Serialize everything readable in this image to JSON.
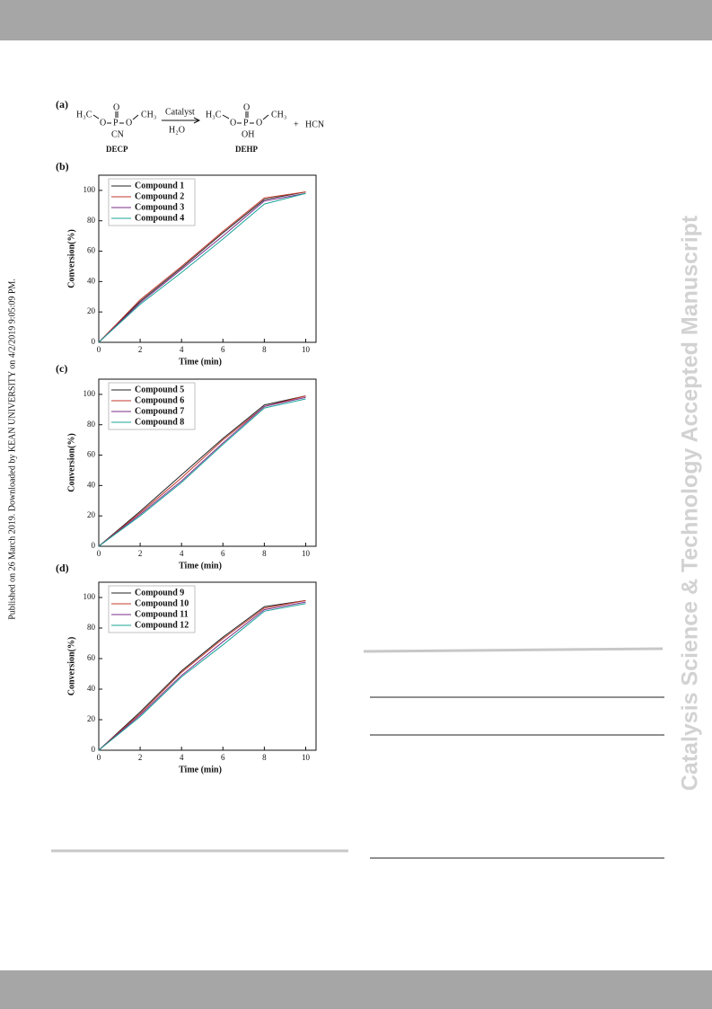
{
  "side_note": "Published on 26 March 2019. Downloaded by KEAN UNIVERSITY on 4/2/2019 9:05:09 PM.",
  "watermark": "Catalysis Science & Technology Accepted Manuscript",
  "scheme": {
    "label": "(a)",
    "reactant": {
      "left": "H₃C",
      "o1": "O",
      "p": "P",
      "o2": "O",
      "right": "CH₃",
      "top": "O",
      "sub": "CN",
      "name": "DECP"
    },
    "catalyst": "Catalyst",
    "solvent": "H₂O",
    "product": {
      "left": "H₃C",
      "o1": "O",
      "p": "P",
      "o2": "O",
      "right": "CH₃",
      "top": "O",
      "sub": "OH",
      "name": "DEHP"
    },
    "plus": "+",
    "byproduct": "HCN"
  },
  "chart_data": [
    {
      "type": "line",
      "label": "(b)",
      "xlabel": "Time (min)",
      "ylabel": "Conversion(%)",
      "x": [
        0,
        2,
        4,
        6,
        8,
        10
      ],
      "xlim": [
        0,
        10.5
      ],
      "ylim": [
        0,
        110
      ],
      "xticks": [
        0,
        2,
        4,
        6,
        8,
        10
      ],
      "yticks": [
        0,
        20,
        40,
        60,
        80,
        100
      ],
      "series": [
        {
          "name": "Compound 1",
          "color": "#222222",
          "values": [
            0,
            27,
            49,
            72,
            94,
            99
          ]
        },
        {
          "name": "Compound 2",
          "color": "#c0392b",
          "values": [
            0,
            28,
            50,
            73,
            95,
            99
          ]
        },
        {
          "name": "Compound 3",
          "color": "#7b2d8b",
          "values": [
            0,
            26,
            48,
            70,
            93,
            98
          ]
        },
        {
          "name": "Compound 4",
          "color": "#1aa39a",
          "values": [
            0,
            25,
            46,
            68,
            91,
            98
          ]
        }
      ]
    },
    {
      "type": "line",
      "label": "(c)",
      "xlabel": "Time (min)",
      "ylabel": "Conversion(%)",
      "x": [
        0,
        2,
        4,
        6,
        8,
        10
      ],
      "xlim": [
        0,
        10.5
      ],
      "ylim": [
        0,
        110
      ],
      "xticks": [
        0,
        2,
        4,
        6,
        8,
        10
      ],
      "yticks": [
        0,
        20,
        40,
        60,
        80,
        100
      ],
      "series": [
        {
          "name": "Compound 5",
          "color": "#222222",
          "values": [
            0,
            23,
            47,
            71,
            93,
            99
          ]
        },
        {
          "name": "Compound 6",
          "color": "#c0392b",
          "values": [
            0,
            22,
            45,
            70,
            92,
            99
          ]
        },
        {
          "name": "Compound 7",
          "color": "#7b2d8b",
          "values": [
            0,
            21,
            43,
            68,
            92,
            98
          ]
        },
        {
          "name": "Compound 8",
          "color": "#1aa39a",
          "values": [
            0,
            20,
            42,
            67,
            91,
            97
          ]
        }
      ]
    },
    {
      "type": "line",
      "label": "(d)",
      "xlabel": "Time (min)",
      "ylabel": "Conversion(%)",
      "x": [
        0,
        2,
        4,
        6,
        8,
        10
      ],
      "xlim": [
        0,
        10.5
      ],
      "ylim": [
        0,
        110
      ],
      "xticks": [
        0,
        2,
        4,
        6,
        8,
        10
      ],
      "yticks": [
        0,
        20,
        40,
        60,
        80,
        100
      ],
      "series": [
        {
          "name": "Compound 9",
          "color": "#222222",
          "values": [
            0,
            25,
            52,
            74,
            94,
            98
          ]
        },
        {
          "name": "Compound 10",
          "color": "#c0392b",
          "values": [
            0,
            24,
            51,
            73,
            93,
            98
          ]
        },
        {
          "name": "Compound 11",
          "color": "#7b2d8b",
          "values": [
            0,
            23,
            49,
            71,
            92,
            97
          ]
        },
        {
          "name": "Compound 12",
          "color": "#1aa39a",
          "values": [
            0,
            22,
            48,
            69,
            91,
            96
          ]
        }
      ]
    }
  ]
}
